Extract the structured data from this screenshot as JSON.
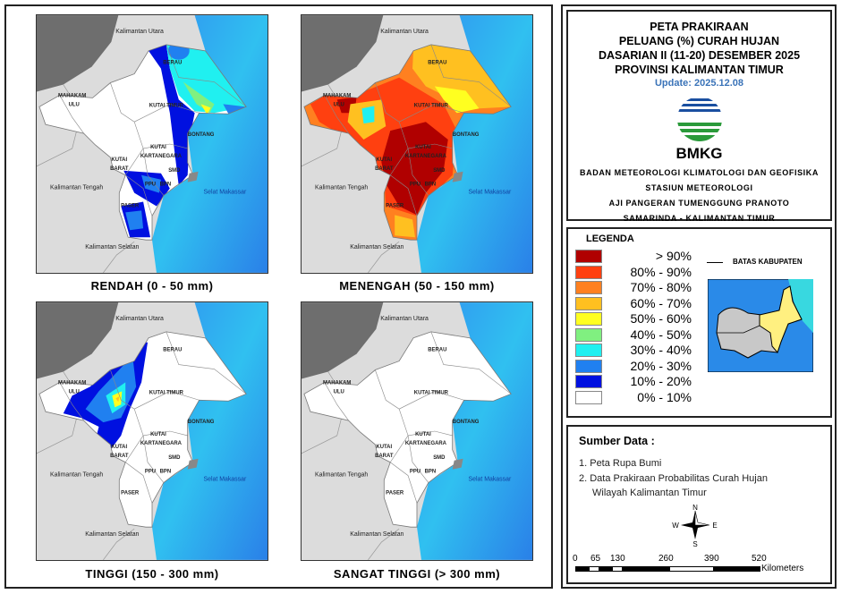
{
  "panels": [
    {
      "title": "RENDAH (0 - 50 mm)",
      "scheme": "rendah"
    },
    {
      "title": "MENENGAH (50 - 150 mm)",
      "scheme": "menengah"
    },
    {
      "title": "TINGGI (150 - 300 mm)",
      "scheme": "tinggi"
    },
    {
      "title": "SANGAT TINGGI (> 300 mm)",
      "scheme": "sangat"
    }
  ],
  "map_labels": [
    "Kalimantan Utara",
    "BERAU",
    "MAHAKAM",
    "ULU",
    "KUTAI TIMUR",
    "BONTANG",
    "KUTAI",
    "KARTANEGARA",
    "KUTAI",
    "BARAT",
    "SMD",
    "PPU",
    "BPN",
    "PASER",
    "Kalimantan Tengah",
    "Selat Makassar",
    "Kalimantan Selatan"
  ],
  "title": {
    "lines": [
      "PETA PRAKIRAAN",
      "PELUANG (%) CURAH HUJAN",
      "DASARIAN II (11-20) DESEMBER 2025",
      "PROVINSI KALIMANTAN TIMUR"
    ],
    "update": "Update: 2025.12.08",
    "logo_text": "BMKG",
    "org": [
      "BADAN METEOROLOGI KLIMATOLOGI DAN GEOFISIKA",
      "STASIUN METEOROLOGI",
      "AJI PANGERAN TUMENGGUNG PRANOTO",
      "SAMARINDA - KALIMANTAN TIMUR"
    ]
  },
  "legend": {
    "title": "LEGENDA",
    "items": [
      {
        "label": "> 90%",
        "color": "#b00000"
      },
      {
        "label": "80% - 90%",
        "color": "#ff4010"
      },
      {
        "label": "70% - 80%",
        "color": "#ff8020"
      },
      {
        "label": "60% - 70%",
        "color": "#ffc020"
      },
      {
        "label": "50% - 60%",
        "color": "#ffff20"
      },
      {
        "label": "40% - 50%",
        "color": "#80f080"
      },
      {
        "label": "30% - 40%",
        "color": "#20f0f0"
      },
      {
        "label": "20% - 30%",
        "color": "#2080f0"
      },
      {
        "label": "10% - 20%",
        "color": "#0010e0"
      },
      {
        "label": "0% - 10%",
        "color": "#ffffff"
      }
    ],
    "boundary_label": "BATAS KABUPATEN"
  },
  "sources": {
    "title": "Sumber Data :",
    "items": [
      "1. Peta Rupa Bumi",
      "2. Data Prakiraan Probabilitas Curah Hujan",
      "Wilayah Kalimantan Timur"
    ]
  },
  "compass": {
    "n": "N",
    "s": "S",
    "e": "E",
    "w": "W"
  },
  "scale": {
    "ticks": [
      "0",
      "65",
      "130",
      "260",
      "390",
      "520"
    ],
    "unit": "Kilometers"
  }
}
